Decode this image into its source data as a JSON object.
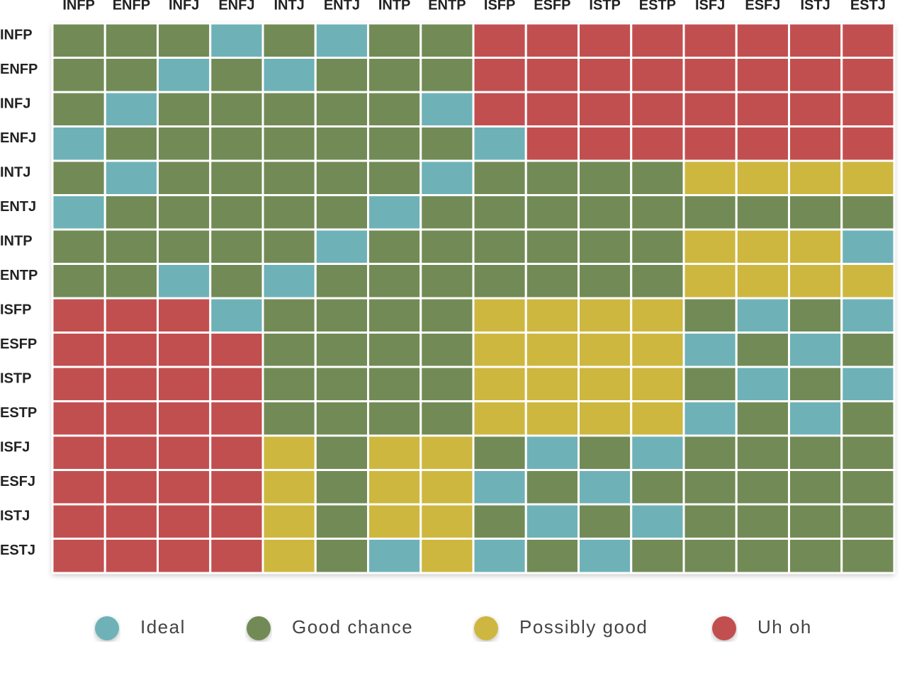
{
  "chart_data": {
    "type": "heatmap",
    "x_categories": [
      "INFP",
      "ENFP",
      "INFJ",
      "ENFJ",
      "INTJ",
      "ENTJ",
      "INTP",
      "ENTP",
      "ISFP",
      "ESFP",
      "ISTP",
      "ESTP",
      "ISFJ",
      "ESFJ",
      "ISTJ",
      "ESTJ"
    ],
    "y_categories": [
      "INFP",
      "ENFP",
      "INFJ",
      "ENFJ",
      "INTJ",
      "ENTJ",
      "INTP",
      "ENTP",
      "ISFP",
      "ESFP",
      "ISTP",
      "ESTP",
      "ISFJ",
      "ESFJ",
      "ISTJ",
      "ESTJ"
    ],
    "series": [
      {
        "name": "Ideal",
        "color": "#6eb2b8"
      },
      {
        "name": "Good chance",
        "color": "#728b56"
      },
      {
        "name": "Possibly good",
        "color": "#cdb73f"
      },
      {
        "name": "Uh oh",
        "color": "#c24f50"
      }
    ],
    "values": [
      [
        1,
        1,
        1,
        0,
        1,
        0,
        1,
        1,
        3,
        3,
        3,
        3,
        3,
        3,
        3,
        3
      ],
      [
        1,
        1,
        0,
        1,
        0,
        1,
        1,
        1,
        3,
        3,
        3,
        3,
        3,
        3,
        3,
        3
      ],
      [
        1,
        0,
        1,
        1,
        1,
        1,
        1,
        0,
        3,
        3,
        3,
        3,
        3,
        3,
        3,
        3
      ],
      [
        0,
        1,
        1,
        1,
        1,
        1,
        1,
        1,
        0,
        3,
        3,
        3,
        3,
        3,
        3,
        3
      ],
      [
        1,
        0,
        1,
        1,
        1,
        1,
        1,
        0,
        1,
        1,
        1,
        1,
        2,
        2,
        2,
        2
      ],
      [
        0,
        1,
        1,
        1,
        1,
        1,
        0,
        1,
        1,
        1,
        1,
        1,
        1,
        1,
        1,
        1
      ],
      [
        1,
        1,
        1,
        1,
        1,
        0,
        1,
        1,
        1,
        1,
        1,
        1,
        2,
        2,
        2,
        0
      ],
      [
        1,
        1,
        0,
        1,
        0,
        1,
        1,
        1,
        1,
        1,
        1,
        1,
        2,
        2,
        2,
        2
      ],
      [
        3,
        3,
        3,
        0,
        1,
        1,
        1,
        1,
        2,
        2,
        2,
        2,
        1,
        0,
        1,
        0
      ],
      [
        3,
        3,
        3,
        3,
        1,
        1,
        1,
        1,
        2,
        2,
        2,
        2,
        0,
        1,
        0,
        1
      ],
      [
        3,
        3,
        3,
        3,
        1,
        1,
        1,
        1,
        2,
        2,
        2,
        2,
        1,
        0,
        1,
        0
      ],
      [
        3,
        3,
        3,
        3,
        1,
        1,
        1,
        1,
        2,
        2,
        2,
        2,
        0,
        1,
        0,
        1
      ],
      [
        3,
        3,
        3,
        3,
        2,
        1,
        2,
        2,
        1,
        0,
        1,
        0,
        1,
        1,
        1,
        1
      ],
      [
        3,
        3,
        3,
        3,
        2,
        1,
        2,
        2,
        0,
        1,
        0,
        1,
        1,
        1,
        1,
        1
      ],
      [
        3,
        3,
        3,
        3,
        2,
        1,
        2,
        2,
        1,
        0,
        1,
        0,
        1,
        1,
        1,
        1
      ],
      [
        3,
        3,
        3,
        3,
        2,
        1,
        0,
        2,
        0,
        1,
        0,
        1,
        1,
        1,
        1,
        1
      ]
    ]
  }
}
